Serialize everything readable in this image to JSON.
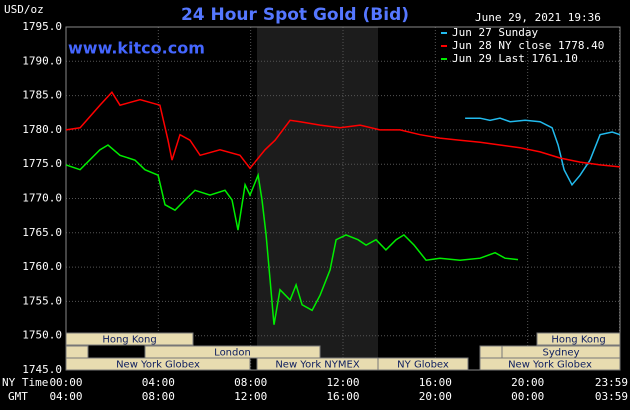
{
  "chart_data": {
    "type": "line",
    "title": "24 Hour Spot Gold (Bid)",
    "y_label": "USD/oz",
    "timestamp": "June 29, 2021 19:36",
    "source": "www.kitco.com",
    "x_label": "NY Time",
    "x2_label": "GMT",
    "xlim": [
      0,
      24
    ],
    "xticks": [
      {
        "value": 0,
        "label": "00:00"
      },
      {
        "value": 4,
        "label": "04:00"
      },
      {
        "value": 8,
        "label": "08:00"
      },
      {
        "value": 12,
        "label": "12:00"
      },
      {
        "value": 16,
        "label": "16:00"
      },
      {
        "value": 20,
        "label": "20:00"
      },
      {
        "value": 23.98,
        "label": "23:59"
      }
    ],
    "x2tick_labels": [
      "04:00",
      "08:00",
      "12:00",
      "16:00",
      "20:00",
      "00:00",
      "03:59"
    ],
    "ylim": [
      1745,
      1795
    ],
    "yticks": [
      {
        "value": 1745,
        "label": "1745.0"
      },
      {
        "value": 1750,
        "label": "1750.0"
      },
      {
        "value": 1755,
        "label": "1755.0"
      },
      {
        "value": 1760,
        "label": "1760.0"
      },
      {
        "value": 1765,
        "label": "1765.0"
      },
      {
        "value": 1770,
        "label": "1770.0"
      },
      {
        "value": 1775,
        "label": "1775.0"
      },
      {
        "value": 1780,
        "label": "1780.0"
      },
      {
        "value": 1785,
        "label": "1785.0"
      },
      {
        "value": 1790,
        "label": "1790.0"
      },
      {
        "value": 1795,
        "label": "1795.0"
      }
    ],
    "grid": true,
    "sessions": [
      "Hong Kong",
      "London",
      "New York Globex",
      "New York NYMEX",
      "NY Globex",
      "Hong Kong",
      "Sydney",
      "New York Globex"
    ],
    "series": [
      {
        "name": "Jun 27 Sunday",
        "color": "#22bbee",
        "x": [
          17.29,
          17.94,
          18.37,
          18.8,
          19.24,
          19.89,
          20.54,
          21.06,
          21.32,
          21.58,
          21.92,
          22.27,
          22.7,
          23.14,
          23.66,
          24
        ],
        "values": [
          1781.7,
          1781.7,
          1781.4,
          1781.7,
          1781.2,
          1781.4,
          1781.2,
          1780.3,
          1777.8,
          1774.2,
          1772.0,
          1773.4,
          1775.6,
          1779.3,
          1779.7,
          1779.3
        ]
      },
      {
        "name": "Jun 28 NY close 1778.40",
        "color": "#ff0000",
        "x": [
          0,
          0.61,
          1.47,
          1.99,
          2.34,
          3.21,
          4.07,
          4.42,
          4.59,
          4.94,
          5.37,
          5.81,
          6.67,
          7.54,
          7.97,
          8.62,
          9.06,
          9.71,
          10.14,
          11.01,
          11.87,
          12.74,
          13.6,
          14.47,
          15.34,
          16.2,
          17.07,
          17.94,
          18.8,
          19.67,
          20.54,
          21.4,
          22.27,
          23.14,
          24
        ],
        "values": [
          1780.0,
          1780.3,
          1783.6,
          1785.5,
          1783.6,
          1784.4,
          1783.6,
          1778.5,
          1775.6,
          1779.3,
          1778.5,
          1776.3,
          1777.1,
          1776.3,
          1774.4,
          1777.1,
          1778.5,
          1781.4,
          1781.2,
          1780.7,
          1780.3,
          1780.7,
          1780.0,
          1780.0,
          1779.3,
          1778.8,
          1778.5,
          1778.2,
          1777.8,
          1777.4,
          1776.8,
          1775.9,
          1775.3,
          1774.9,
          1774.6
        ]
      },
      {
        "name": "Jun 29 Last 1761.10",
        "color": "#00ee00",
        "x": [
          0,
          0.61,
          1.47,
          1.82,
          2.34,
          2.99,
          3.42,
          3.99,
          4.29,
          4.72,
          5.16,
          5.59,
          6.24,
          6.89,
          7.19,
          7.45,
          7.76,
          7.97,
          8.32,
          8.49,
          8.67,
          8.84,
          9.01,
          9.27,
          9.71,
          9.97,
          10.23,
          10.66,
          11.01,
          11.44,
          11.7,
          12.13,
          12.65,
          13.0,
          13.43,
          13.86,
          14.3,
          14.64,
          15.08,
          15.6,
          16.2,
          17.07,
          17.94,
          18.59,
          19.02,
          19.58
        ],
        "values": [
          1774.9,
          1774.2,
          1777.1,
          1777.8,
          1776.3,
          1775.6,
          1774.2,
          1773.4,
          1769.1,
          1768.3,
          1769.8,
          1771.2,
          1770.5,
          1771.2,
          1769.8,
          1765.4,
          1772.0,
          1770.5,
          1773.4,
          1769.8,
          1764.7,
          1758.1,
          1751.6,
          1756.7,
          1755.2,
          1757.4,
          1754.5,
          1753.7,
          1755.9,
          1759.6,
          1764.0,
          1764.7,
          1764.0,
          1763.2,
          1764.0,
          1762.5,
          1764.0,
          1764.7,
          1763.2,
          1761.0,
          1761.3,
          1761.0,
          1761.3,
          1762.1,
          1761.3,
          1761.1
        ]
      }
    ]
  }
}
